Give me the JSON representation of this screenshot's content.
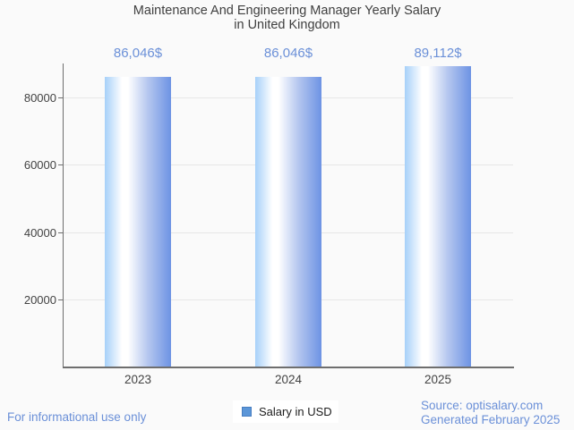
{
  "header": {
    "title_line1": "Maintenance And Engineering Manager Yearly Salary",
    "title_line2": "in United Kingdom"
  },
  "chart_data": {
    "type": "bar",
    "title": "Maintenance And Engineering Manager Yearly Salary in United Kingdom",
    "categories": [
      "2023",
      "2024",
      "2025"
    ],
    "series": [
      {
        "name": "Salary in USD",
        "values": [
          86046,
          86046,
          89112
        ]
      }
    ],
    "value_labels": [
      "86,046$",
      "86,046$",
      "89,112$"
    ],
    "xlabel": "",
    "ylabel": "",
    "ylim": [
      0,
      90000
    ],
    "yticks": [
      20000,
      40000,
      60000,
      80000
    ],
    "ytick_labels": [
      "20000",
      "40000",
      "60000",
      "80000"
    ],
    "grid": true,
    "legend_position": "bottom"
  },
  "legend": {
    "label": "Salary in USD",
    "swatch_color": "#5b96d8"
  },
  "footer": {
    "disclaimer": "For informational use only",
    "source": "Source: optisalary.com",
    "generated": "Generated February 2025"
  },
  "colors": {
    "accent_blue": "#6b90d8",
    "bar_gradient_left": "#a6d0f9",
    "bar_gradient_mid": "#ffffff",
    "bar_gradient_right": "#6d93e4",
    "axis": "#6e6e6e",
    "gridline": "#e7e7e7",
    "axis_text": "#424242",
    "title_text": "#3f3f3f",
    "background": "#fafafa",
    "legend_bg": "#ffffff"
  }
}
